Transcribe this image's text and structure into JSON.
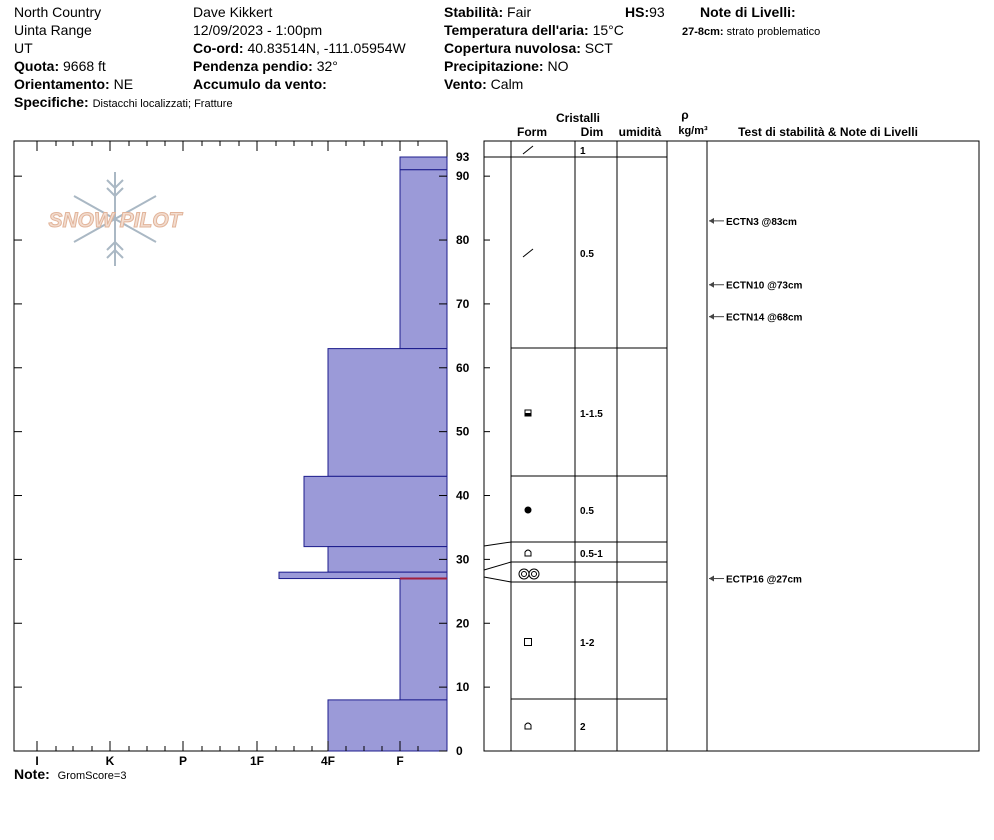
{
  "header": {
    "location": "North Country",
    "range": "Uinta Range",
    "state": "UT",
    "observer": "Dave Kikkert",
    "datetime": "12/09/2023 - 1:00pm",
    "coord_label": "Co-ord:",
    "coord_value": "40.83514N, -111.05954W",
    "elevation_label": "Quota:",
    "elevation_value": "9668 ft",
    "slope_label": "Pendenza pendio:",
    "slope_value": "32°",
    "aspect_label": "Orientamento:",
    "aspect_value": "NE",
    "wind_loading_label": "Accumulo da vento:",
    "wind_loading_value": "",
    "specifics_label": "Specifiche:",
    "specifics_value": "Distacchi localizzati;  Fratture",
    "stability_label": "Stabilità:",
    "stability_value": "Fair",
    "hs_label": "HS:",
    "hs_value": "93",
    "air_temp_label": "Temperatura dell'aria:",
    "air_temp_value": "15°C",
    "cloud_label": "Copertura nuvolosa:",
    "cloud_value": "SCT",
    "precip_label": "Precipitazione:",
    "precip_value": "NO",
    "wind_label": "Vento:",
    "wind_value": "Calm",
    "layer_notes_label": "Note di Livelli:",
    "layer_notes_range": "27-8cm:",
    "layer_notes_text": "strato problematico"
  },
  "logo_text": "SNOW PILOT",
  "note": {
    "label": "Note:",
    "value": "GromScore=3"
  },
  "columns": {
    "crystals": "Cristalli",
    "form": "Form",
    "dim": "Dim",
    "moisture": "umidità",
    "rho": "ρ",
    "density_unit": "kg/m³",
    "tests": "Test di stabilità & Note di Livelli"
  },
  "chart_data": {
    "type": "bar",
    "title": "",
    "xlabel": "",
    "ylabel": "",
    "ylim": [
      0,
      93
    ],
    "yticks": [
      0,
      10,
      20,
      30,
      40,
      50,
      60,
      70,
      80,
      90
    ],
    "top_label": "93",
    "hardness_scale": [
      "I",
      "K",
      "P",
      "1F",
      "4F",
      "F"
    ],
    "layers": [
      {
        "bottom": 91,
        "top": 93,
        "hardness": "F",
        "form": "DF",
        "dim": "1"
      },
      {
        "bottom": 63,
        "top": 91,
        "hardness": "F",
        "form": "DF",
        "dim": "0.5"
      },
      {
        "bottom": 43,
        "top": 63,
        "hardness": "4F",
        "form": "FCxr",
        "dim": "1-1.5"
      },
      {
        "bottom": 32,
        "top": 43,
        "hardness": "4F+",
        "form": "RG",
        "dim": "0.5"
      },
      {
        "bottom": 28,
        "top": 32,
        "hardness": "4F",
        "form": "FC",
        "dim": "0.5-1"
      },
      {
        "bottom": 27,
        "top": 28,
        "hardness": "1F+",
        "form": "SH",
        "dim": ""
      },
      {
        "bottom": 8,
        "top": 27,
        "hardness": "F",
        "form": "FC",
        "dim": "1-2"
      },
      {
        "bottom": 0,
        "top": 8,
        "hardness": "4F",
        "form": "FC",
        "dim": "2"
      }
    ],
    "problem_layer_depth": 27,
    "tests": [
      {
        "depth": 83,
        "label": "ECTN3 @83cm"
      },
      {
        "depth": 73,
        "label": "ECTN10 @73cm"
      },
      {
        "depth": 68,
        "label": "ECTN14 @68cm"
      },
      {
        "depth": 27,
        "label": "ECTP16 @27cm"
      }
    ]
  }
}
